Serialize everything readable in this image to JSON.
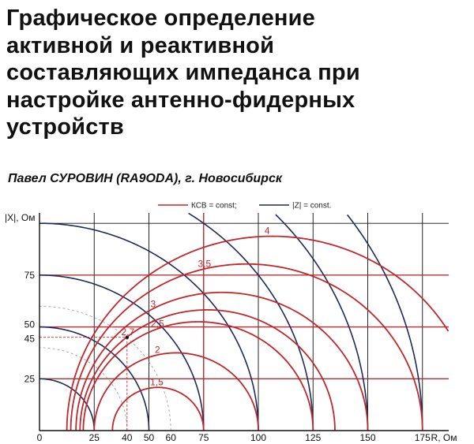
{
  "article": {
    "title_lines": [
      "Графическое определение",
      "активной и реактивной",
      "составляющих импеданса при",
      "настройке антенно-фидерных",
      "устройств"
    ],
    "byline": "Павел СУРОВИН (RA9ODA), г. Новосибирск"
  },
  "chart_data": {
    "type": "line",
    "title": "",
    "xlabel": "R, Ом",
    "ylabel": "|X|, Ом",
    "xlim": [
      0,
      187
    ],
    "ylim": [
      0,
      105
    ],
    "x_ticks": [
      "0",
      "25",
      "40",
      "50",
      "60",
      "75",
      "100",
      "125",
      "150",
      "175"
    ],
    "y_ticks": [
      "25",
      "45",
      "50",
      "75"
    ],
    "grid_x": [
      0,
      25,
      50,
      75,
      100,
      125,
      150,
      175
    ],
    "grid_y": [
      25,
      50,
      75,
      100
    ],
    "red_gridlines_x": [
      75
    ],
    "red_gridlines_y": [
      25,
      50,
      75
    ],
    "reference_impedance": 50,
    "legend": {
      "position": "top-center",
      "entries": [
        {
          "label": "КСВ = const;",
          "color": "#c0282d"
        },
        {
          "label": "|Z| = const.",
          "color": "#1f2a5a"
        }
      ]
    },
    "series": [
      {
        "name": "КСВ = const;",
        "color": "#c0282d",
        "swr_values": [
          1.5,
          2,
          2.5,
          2.7,
          3,
          3.5,
          4
        ]
      },
      {
        "name": "|Z| = const.",
        "color": "#1f2a5a",
        "z_values": [
          25,
          50,
          75,
          100,
          125,
          150,
          175
        ]
      }
    ],
    "curve_labels": [
      "1,5",
      "2",
      "2,5",
      "2,7",
      "3",
      "3,5",
      "4"
    ],
    "marker_point": {
      "r": 40,
      "x": 45
    },
    "colors": {
      "swr": "#c0282d",
      "z": "#1f2a5a",
      "grid": "#111111"
    }
  }
}
